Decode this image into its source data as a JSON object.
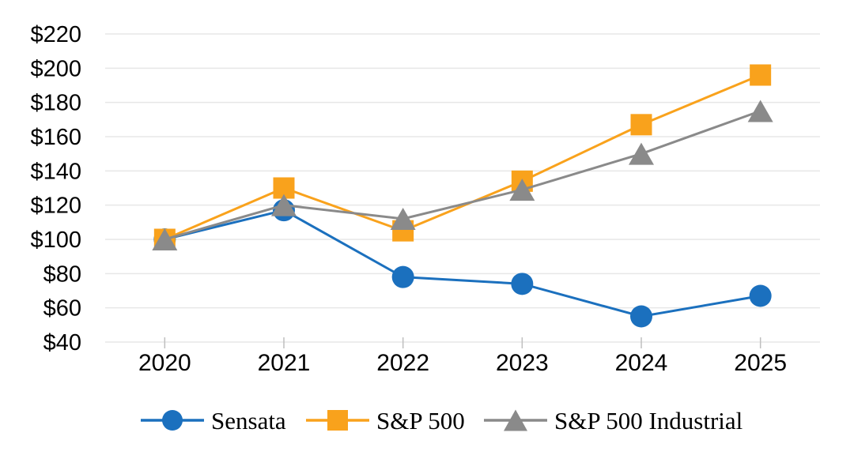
{
  "chart_data": {
    "type": "line",
    "title": "",
    "xlabel": "",
    "ylabel": "",
    "categories": [
      "2020",
      "2021",
      "2022",
      "2023",
      "2024",
      "2025"
    ],
    "series": [
      {
        "name": "Sensata",
        "marker": "circle",
        "color": "#1B70BE",
        "values": [
          100,
          117,
          78,
          74,
          55,
          67
        ]
      },
      {
        "name": "S&P 500",
        "marker": "square",
        "color": "#F9A21C",
        "values": [
          100,
          130,
          105,
          134,
          167,
          196
        ]
      },
      {
        "name": "S&P 500 Industrial",
        "marker": "triangle",
        "color": "#8A8A8A",
        "values": [
          100,
          120,
          112,
          129,
          150,
          175
        ]
      }
    ],
    "ylim": [
      40,
      220
    ],
    "ytick_step": 20,
    "ytick_prefix": "$",
    "y_tick_labels": [
      "$40",
      "$60",
      "$80",
      "$100",
      "$120",
      "$140",
      "$160",
      "$180",
      "$200",
      "$220"
    ],
    "grid": true,
    "legend_position": "bottom",
    "colors": {
      "gridline": "#E7E7E7",
      "axis_tick": "#BFBFBF",
      "text": "#000000",
      "background": "#FFFFFF"
    }
  }
}
